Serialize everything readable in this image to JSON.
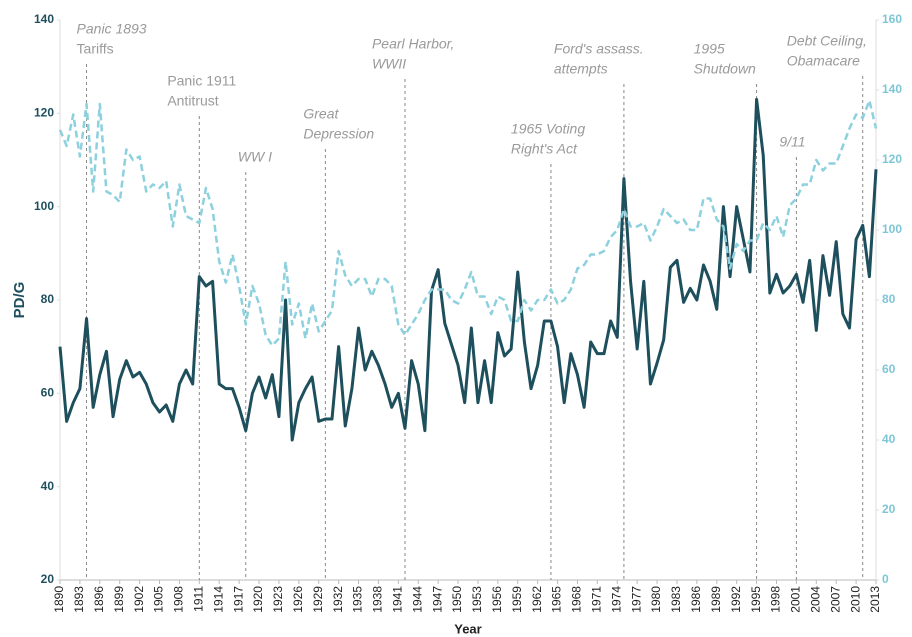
{
  "chart_data": {
    "type": "line",
    "x_label": "Year",
    "y_label": "PD/G",
    "x": [
      1890,
      1891,
      1892,
      1893,
      1894,
      1895,
      1896,
      1897,
      1898,
      1899,
      1900,
      1901,
      1902,
      1903,
      1904,
      1905,
      1906,
      1907,
      1908,
      1909,
      1910,
      1911,
      1912,
      1913,
      1914,
      1915,
      1916,
      1917,
      1918,
      1919,
      1920,
      1921,
      1922,
      1923,
      1924,
      1925,
      1926,
      1927,
      1928,
      1929,
      1930,
      1931,
      1932,
      1933,
      1934,
      1935,
      1936,
      1937,
      1938,
      1939,
      1940,
      1941,
      1942,
      1943,
      1944,
      1945,
      1946,
      1947,
      1948,
      1949,
      1950,
      1951,
      1952,
      1953,
      1954,
      1955,
      1956,
      1957,
      1958,
      1959,
      1960,
      1961,
      1962,
      1963,
      1964,
      1965,
      1966,
      1967,
      1968,
      1969,
      1970,
      1971,
      1972,
      1973,
      1974,
      1975,
      1976,
      1977,
      1978,
      1979,
      1980,
      1981,
      1982,
      1983,
      1984,
      1985,
      1986,
      1987,
      1988,
      1989,
      1990,
      1991,
      1992,
      1993,
      1994,
      1995,
      1996,
      1997,
      1998,
      1999,
      2000,
      2001,
      2002,
      2003,
      2004,
      2005,
      2006,
      2007,
      2008,
      2009,
      2010,
      2011,
      2012,
      2013
    ],
    "xlim": [
      1890,
      2013
    ],
    "xticks": [
      1890,
      1893,
      1896,
      1899,
      1902,
      1905,
      1908,
      1911,
      1914,
      1917,
      1920,
      1923,
      1926,
      1929,
      1932,
      1935,
      1938,
      1941,
      1944,
      1947,
      1950,
      1953,
      1956,
      1959,
      1962,
      1965,
      1968,
      1971,
      1974,
      1977,
      1980,
      1983,
      1986,
      1989,
      1992,
      1995,
      1998,
      2001,
      2004,
      2007,
      2010,
      2013
    ],
    "ylim": [
      20,
      140
    ],
    "yticks": [
      20,
      40,
      60,
      80,
      100,
      120,
      140
    ],
    "y2lim": [
      0,
      160
    ],
    "y2ticks": [
      0,
      20,
      40,
      60,
      80,
      100,
      120,
      140,
      160
    ],
    "series": [
      {
        "color": "#1e4f5c",
        "dashed": false,
        "values": [
          70,
          54,
          58,
          61,
          76,
          57,
          64,
          69,
          55,
          63,
          67,
          63.5,
          64.5,
          62,
          58,
          56,
          57.5,
          54,
          62,
          65,
          62,
          85,
          83,
          84,
          62,
          61,
          61,
          57,
          52,
          60,
          63.5,
          59,
          64,
          55,
          80,
          50,
          58,
          61,
          63.5,
          54,
          54.5,
          54.5,
          70,
          53,
          61,
          74,
          65,
          69,
          66,
          62,
          57,
          60,
          52.5,
          67,
          62,
          52,
          82,
          86.5,
          75,
          70.5,
          66,
          58,
          74,
          58,
          67,
          58,
          73,
          68,
          69.5,
          86,
          71,
          61,
          66,
          75.5,
          75.5,
          70,
          58,
          68.5,
          64,
          57,
          71,
          68.5,
          68.5,
          75.5,
          72,
          106,
          84,
          69.5,
          84,
          62,
          66.5,
          71.5,
          87,
          88.5,
          79.5,
          82.5,
          80,
          87.5,
          84,
          78,
          100,
          85,
          100,
          93,
          86,
          123,
          111,
          81.5,
          85.5,
          81.5,
          83,
          85.5,
          79.5,
          88.5,
          73.5,
          89.5,
          81,
          92.5,
          77,
          74,
          93,
          96,
          85,
          108
        ]
      },
      {
        "color": "#8dd0de",
        "dashed": true,
        "axis": "y2",
        "values": [
          128.6,
          124,
          133,
          121,
          136,
          111,
          136,
          111,
          110,
          108,
          123,
          120,
          121,
          111,
          113,
          112,
          114,
          101,
          113,
          104,
          103,
          102,
          112,
          106,
          91,
          85,
          93,
          84,
          73,
          84,
          79,
          70,
          67,
          69,
          91,
          73,
          79,
          69,
          79,
          71,
          74,
          77,
          94,
          87,
          84,
          86,
          86,
          81,
          86,
          86,
          84,
          73,
          70,
          73,
          76,
          80,
          83,
          83,
          83,
          80,
          79,
          83,
          88,
          81,
          81,
          76,
          81,
          80,
          74,
          74,
          80,
          77,
          80,
          80,
          83,
          79,
          80,
          83,
          89,
          90,
          93,
          93,
          94,
          98,
          100,
          106,
          101,
          101,
          102,
          97,
          101,
          106,
          104,
          102,
          103,
          100,
          100,
          109,
          109,
          103,
          101,
          89,
          96,
          94,
          97,
          97,
          102,
          100,
          104,
          98,
          107,
          109,
          113,
          113,
          120,
          117,
          119,
          119,
          124,
          129,
          133,
          132,
          137,
          129
        ]
      }
    ],
    "annotations": [
      {
        "x": 1894,
        "lines": [
          "Panic 1893",
          "Tariffs"
        ],
        "italic": [
          true,
          false
        ]
      },
      {
        "x": 1911,
        "lines": [
          "Panic 1911",
          "Antitrust"
        ],
        "italic": [
          false,
          false
        ]
      },
      {
        "x": 1918,
        "lines": [
          "WW I"
        ],
        "italic": [
          true
        ]
      },
      {
        "x": 1930,
        "lines": [
          "Great",
          "Depression"
        ],
        "italic": [
          true,
          true
        ]
      },
      {
        "x": 1942,
        "lines": [
          "Pearl Harbor,",
          "WWII"
        ],
        "italic": [
          true,
          true
        ]
      },
      {
        "x": 1964,
        "lines": [
          "1965 Voting",
          "Right's Act"
        ],
        "italic": [
          true,
          true
        ]
      },
      {
        "x": 1975,
        "lines": [
          "Ford's assass.",
          "attempts"
        ],
        "italic": [
          true,
          true
        ]
      },
      {
        "x": 1995,
        "lines": [
          "1995",
          "Shutdown"
        ],
        "italic": [
          true,
          true
        ]
      },
      {
        "x": 2001,
        "lines": [
          "9/11"
        ],
        "italic": [
          true
        ]
      },
      {
        "x": 2011,
        "lines": [
          "Debt Ceiling,",
          "Obamacare"
        ],
        "italic": [
          true,
          true
        ]
      }
    ]
  }
}
